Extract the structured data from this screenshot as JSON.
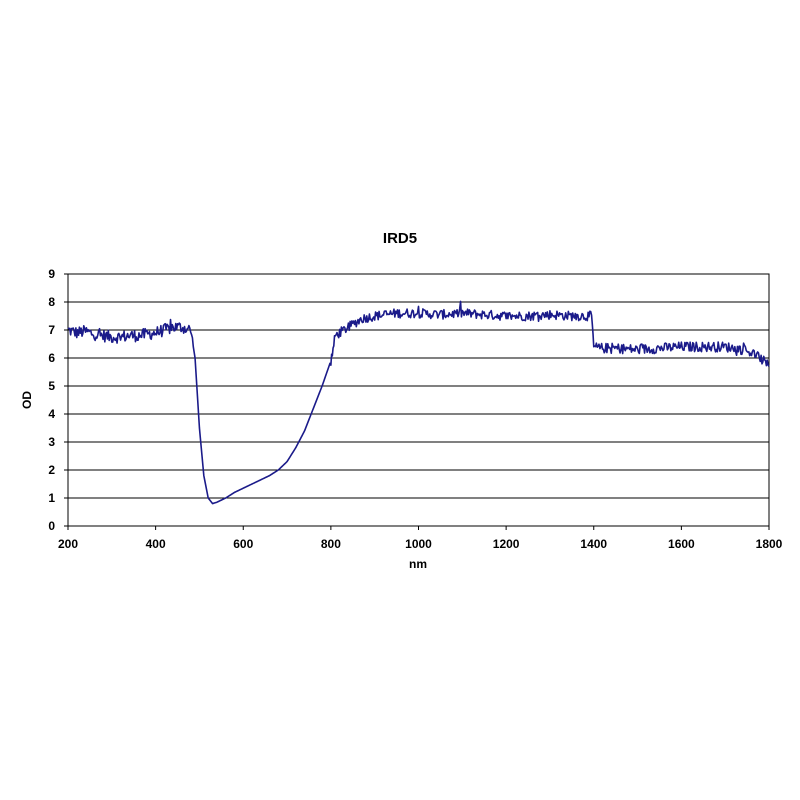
{
  "chart_data": {
    "type": "line",
    "title": "IRD5",
    "xlabel": "nm",
    "ylabel": "OD",
    "xlim": [
      200,
      1800
    ],
    "ylim": [
      0,
      9
    ],
    "xticks": [
      200,
      400,
      600,
      800,
      1000,
      1200,
      1400,
      1600,
      1800
    ],
    "yticks": [
      0,
      1,
      2,
      3,
      4,
      5,
      6,
      7,
      8,
      9
    ],
    "grid": "horizontal",
    "legend": "none",
    "series": [
      {
        "color": "#1b1b8a",
        "x": [
          200,
          220,
          240,
          260,
          280,
          300,
          320,
          340,
          360,
          380,
          400,
          420,
          440,
          460,
          480,
          490,
          500,
          510,
          520,
          530,
          540,
          560,
          580,
          600,
          620,
          640,
          660,
          680,
          700,
          720,
          740,
          760,
          780,
          800,
          805,
          810,
          830,
          850,
          870,
          900,
          950,
          1000,
          1050,
          1100,
          1150,
          1200,
          1250,
          1300,
          1350,
          1395,
          1400,
          1410,
          1450,
          1500,
          1550,
          1600,
          1650,
          1700,
          1720,
          1740,
          1760,
          1780,
          1800
        ],
        "y": [
          7.0,
          6.9,
          6.95,
          6.85,
          6.8,
          6.75,
          6.75,
          6.8,
          6.8,
          6.85,
          6.9,
          7.0,
          7.1,
          7.1,
          7.0,
          6.0,
          3.5,
          1.8,
          1.0,
          0.8,
          0.85,
          1.0,
          1.2,
          1.35,
          1.5,
          1.65,
          1.8,
          2.0,
          2.3,
          2.8,
          3.4,
          4.2,
          5.0,
          5.9,
          6.3,
          6.8,
          7.0,
          7.2,
          7.4,
          7.5,
          7.6,
          7.6,
          7.55,
          7.6,
          7.55,
          7.5,
          7.5,
          7.55,
          7.5,
          7.5,
          6.4,
          6.35,
          6.35,
          6.3,
          6.35,
          6.4,
          6.4,
          6.4,
          6.35,
          6.3,
          6.2,
          6.0,
          5.7
        ]
      }
    ]
  }
}
